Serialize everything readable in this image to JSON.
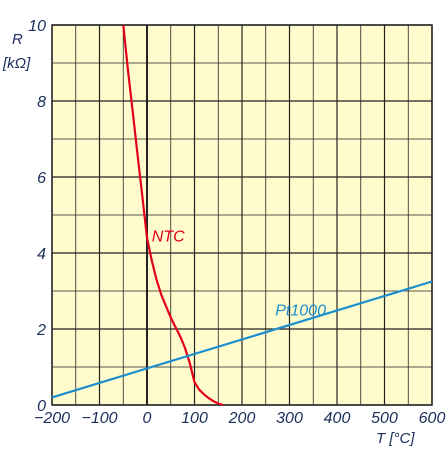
{
  "chart_data": {
    "type": "line",
    "title": "",
    "xlabel": "T [°C]",
    "ylabel_line1": "R",
    "ylabel_line2": "[kΩ]",
    "xlim": [
      -200,
      600
    ],
    "ylim": [
      0,
      10
    ],
    "x_ticks": [
      -200,
      -100,
      0,
      100,
      200,
      300,
      400,
      500,
      600
    ],
    "x_tick_labels": [
      "−200",
      "−100",
      "0",
      "100",
      "200",
      "300",
      "400",
      "500",
      "600"
    ],
    "y_ticks": [
      0,
      2,
      4,
      6,
      8,
      10
    ],
    "y_tick_labels": [
      "0",
      "2",
      "4",
      "6",
      "8",
      "10"
    ],
    "grid": true,
    "background_color": "#fffbcc",
    "series": [
      {
        "name": "NTC",
        "color": "#e2001a",
        "x": [
          -50,
          -40,
          -30,
          -20,
          -10,
          0,
          10,
          20,
          30,
          40,
          50,
          60,
          70,
          80,
          90,
          100,
          110,
          120,
          130,
          140,
          150,
          160
        ],
        "y": [
          10.0,
          8.8,
          7.7,
          6.6,
          5.5,
          4.4,
          3.8,
          3.3,
          2.9,
          2.6,
          2.3,
          2.05,
          1.8,
          1.5,
          1.1,
          0.6,
          0.4,
          0.28,
          0.18,
          0.1,
          0.04,
          0.0
        ]
      },
      {
        "name": "Pt1000",
        "color": "#1a8fd0",
        "x": [
          -200,
          600
        ],
        "y": [
          0.2,
          3.25
        ]
      }
    ],
    "annotations": [
      {
        "text": "NTC",
        "series": "NTC",
        "at_x": 10,
        "at_y": 4.3
      },
      {
        "text": "Pt1000",
        "series": "Pt1000",
        "at_x": 270,
        "at_y": 2.35
      }
    ]
  }
}
